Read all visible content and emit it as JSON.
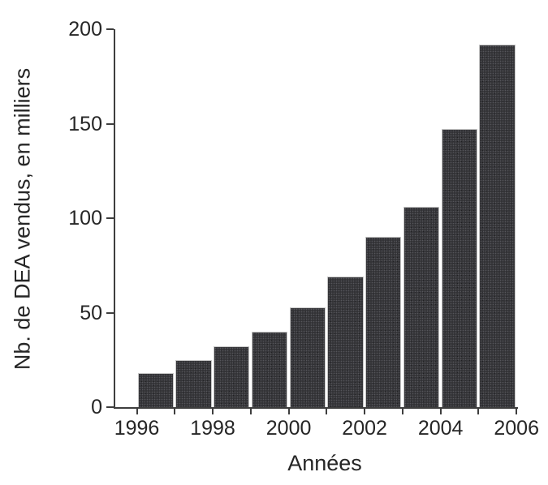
{
  "chart_data": {
    "type": "bar",
    "title": "",
    "xlabel": "Années",
    "ylabel": "Nb. de DEA vendus, en milliers",
    "categories": [
      1996,
      1997,
      1998,
      1999,
      2000,
      2001,
      2002,
      2003,
      2004,
      2005
    ],
    "values": [
      18,
      25,
      32,
      40,
      53,
      69,
      90,
      106,
      147,
      192
    ],
    "x_axis": {
      "tick_years": [
        1996,
        1997,
        1998,
        1999,
        2000,
        2001,
        2002,
        2003,
        2004,
        2005,
        2006
      ],
      "labeled_years": [
        1996,
        1998,
        2000,
        2002,
        2004,
        2006
      ]
    },
    "y_axis": {
      "ticks": [
        0,
        50,
        100,
        150,
        200
      ],
      "range": [
        0,
        200
      ]
    },
    "grid": false,
    "legend": null,
    "colors": {
      "bar_fill": "#333336",
      "bar_speckle": "#55555a",
      "bar_border": "#c6c6c6",
      "axis": "#3e3e3e",
      "text": "#262626",
      "background": "#ffffff"
    }
  }
}
